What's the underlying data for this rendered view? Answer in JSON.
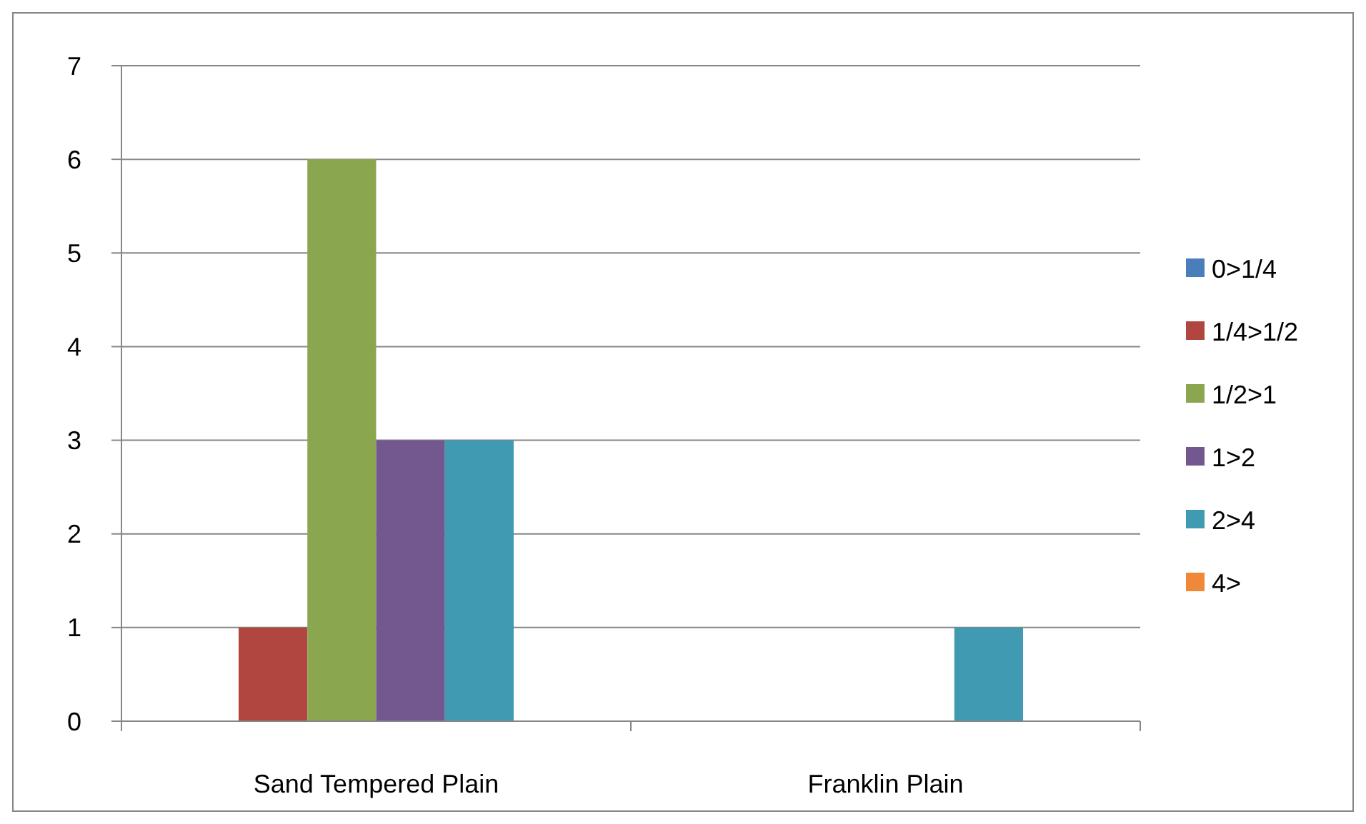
{
  "chart_data": {
    "type": "bar",
    "categories": [
      "Sand Tempered Plain",
      "Franklin Plain"
    ],
    "series": [
      {
        "name": "0>1/4",
        "color": "#4a7ebb",
        "values": [
          0,
          0
        ]
      },
      {
        "name": "1/4>1/2",
        "color": "#b0463f",
        "values": [
          1,
          0
        ]
      },
      {
        "name": "1/2>1",
        "color": "#8aa64e",
        "values": [
          6,
          0
        ]
      },
      {
        "name": "1>2",
        "color": "#72588f",
        "values": [
          3,
          0
        ]
      },
      {
        "name": "2>4",
        "color": "#409bb2",
        "values": [
          3,
          1
        ]
      },
      {
        "name": "4>",
        "color": "#f0883a",
        "values": [
          0,
          0
        ]
      }
    ],
    "ylim": [
      0,
      7
    ],
    "yticks": [
      0,
      1,
      2,
      3,
      4,
      5,
      6,
      7
    ],
    "grid": "y",
    "legend": "right"
  }
}
